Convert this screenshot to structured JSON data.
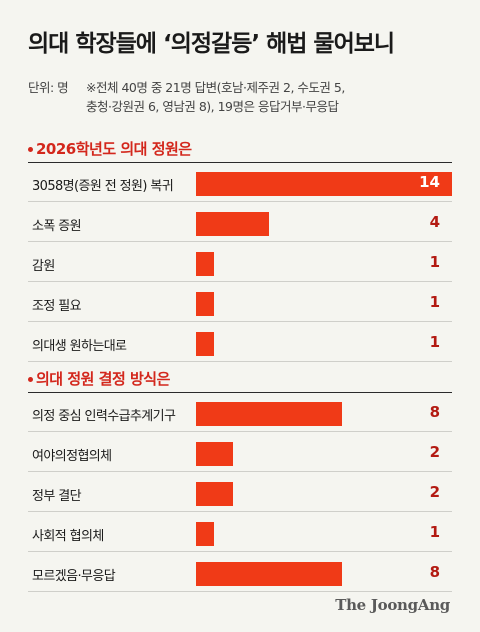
{
  "title": "의대 학장들에 ‘의정갈등’ 해법 물어보니",
  "note": {
    "unit": "단위: 명",
    "line1": "※전체 40명 중 21명 답변(호남·제주권 2, 수도권 5,",
    "line2": "충청·강원권 6, 영남권 8), 19명은 응답거부·무응답"
  },
  "brand": "The JoongAng",
  "colors": {
    "bar": "#f03a17",
    "accent": "#d3271c",
    "value": "#b31a12"
  },
  "chart_data": [
    {
      "type": "bar",
      "orientation": "horizontal",
      "title": "2026학년도 의대 정원은",
      "categories": [
        "3058명(증원 전 정원) 복귀",
        "소폭 증원",
        "감원",
        "조정 필요",
        "의대생 원하는대로"
      ],
      "values": [
        14,
        4,
        1,
        1,
        1
      ]
    },
    {
      "type": "bar",
      "orientation": "horizontal",
      "title": "의대 정원 결정 방식은",
      "categories": [
        "의정 중심 인력수급추계기구",
        "여야의정협의체",
        "정부 결단",
        "사회적 협의체",
        "모르겠음·무응답"
      ],
      "values": [
        8,
        2,
        2,
        1,
        8
      ]
    }
  ]
}
